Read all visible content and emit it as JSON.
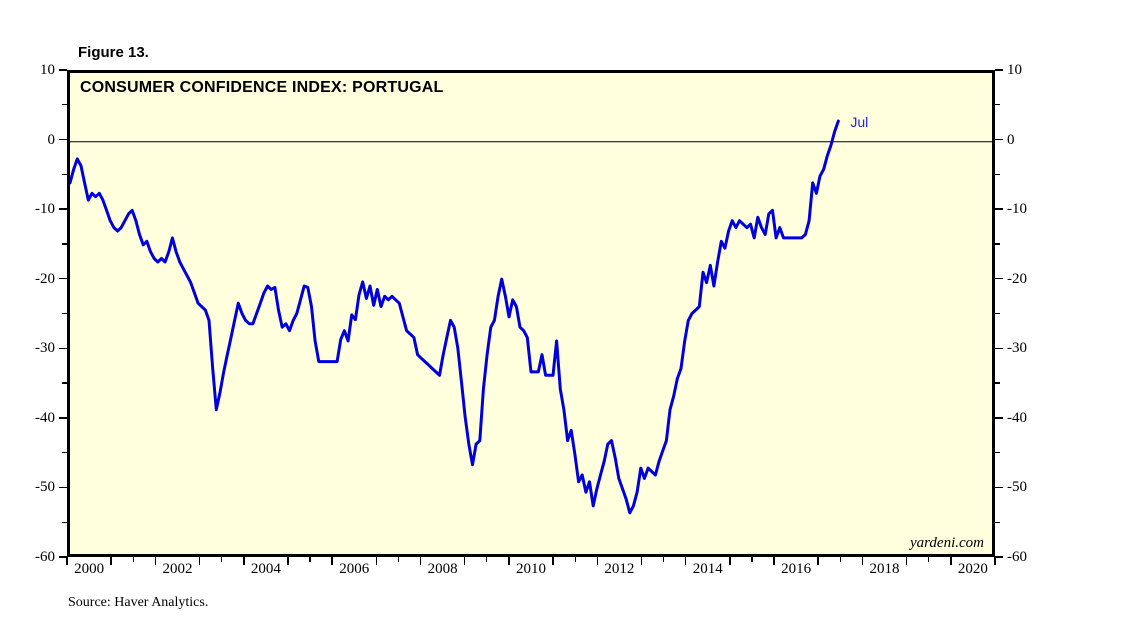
{
  "figure_label": "Figure 13.",
  "source_note": "Source: Haver Analytics.",
  "watermark": "yardeni.com",
  "annotation": {
    "text": "Jul"
  },
  "colors": {
    "plot_background": "#FFFFDE",
    "line": "#0000DC",
    "annotation": "#2222EE",
    "frame": "#000000"
  },
  "chart_data": {
    "type": "line",
    "title": "CONSUMER CONFIDENCE INDEX: PORTUGAL",
    "series_name": "Consumer Confidence Index: Portugal",
    "freq": "monthly",
    "start": "2000-01",
    "end": "2017-07",
    "x_range": [
      2000,
      2021
    ],
    "ylim": [
      -60,
      10
    ],
    "y_major_ticks": [
      10,
      0,
      -10,
      -20,
      -30,
      -40,
      -50,
      -60
    ],
    "y_minor_ticks": [
      5,
      -5,
      -15,
      -25,
      -35,
      -45,
      -55
    ],
    "x_labels": [
      2000,
      2002,
      2004,
      2006,
      2008,
      2010,
      2012,
      2014,
      2016,
      2018,
      2020
    ],
    "x_minor_tick_years": [
      2001.5,
      2003.5,
      2005.5,
      2007.5,
      2009.5,
      2011.5,
      2013.5,
      2015.5,
      2017.5,
      2019.5
    ],
    "zero_line": true,
    "grid": false,
    "legend": false,
    "last_point_label": "Jul",
    "values": [
      -6,
      -4,
      -2.5,
      -3.5,
      -6,
      -8.5,
      -7.5,
      -8,
      -7.5,
      -8.5,
      -10,
      -11.5,
      -12.5,
      -13,
      -12.5,
      -11.5,
      -10.5,
      -10,
      -11.5,
      -13.5,
      -15,
      -14.5,
      -16,
      -17,
      -17.5,
      -17,
      -17.5,
      -16,
      -14,
      -16,
      -17.5,
      -18.5,
      -19.5,
      -20.5,
      -22,
      -23.5,
      -24,
      -24.5,
      -26,
      -33,
      -39,
      -36.5,
      -33.5,
      -31,
      -28.5,
      -26,
      -23.5,
      -25,
      -26,
      -26.5,
      -26.5,
      -25,
      -23.5,
      -22,
      -21,
      -21.5,
      -21.2,
      -24.5,
      -27,
      -26.5,
      -27.5,
      -26,
      -25,
      -23,
      -21,
      -21.2,
      -24,
      -29,
      -32,
      -32,
      -32,
      -32,
      -32,
      -32,
      -28.8,
      -27.5,
      -29,
      -25.2,
      -25.9,
      -22.3,
      -20.4,
      -22.8,
      -21,
      -23.8,
      -21.5,
      -24,
      -22.5,
      -23,
      -22.5,
      -23,
      -23.5,
      -25.5,
      -27.5,
      -28,
      -28.5,
      -31,
      -31.5,
      -32,
      -32.5,
      -33,
      -33.5,
      -34,
      -31,
      -28.5,
      -26,
      -27,
      -30,
      -35,
      -40,
      -44,
      -47,
      -44,
      -43.5,
      -36,
      -31,
      -27,
      -26,
      -22.5,
      -20,
      -22.5,
      -25.5,
      -23,
      -24,
      -27,
      -27.5,
      -28.5,
      -33.5,
      -33.5,
      -33.5,
      -31,
      -34,
      -34,
      -34,
      -29,
      -36,
      -39,
      -43.5,
      -42,
      -45.5,
      -49.5,
      -48.5,
      -51,
      -49.5,
      -53,
      -50.5,
      -48.5,
      -46.5,
      -44,
      -43.5,
      -46,
      -49,
      -50.5,
      -52,
      -54,
      -53,
      -51,
      -47.5,
      -49,
      -47.5,
      -48,
      -48.5,
      -46.5,
      -45,
      -43.5,
      -39,
      -37,
      -34.5,
      -33,
      -29,
      -26,
      -25,
      -24.5,
      -24,
      -19,
      -20.5,
      -18,
      -21,
      -17.5,
      -14.5,
      -15.5,
      -13,
      -11.5,
      -12.5,
      -11.5,
      -12,
      -12.5,
      -12,
      -14,
      -11,
      -12.5,
      -13.5,
      -10.5,
      -10,
      -14,
      -12.5,
      -14,
      -14,
      -14,
      -14,
      -14,
      -14,
      -13.5,
      -11.5,
      -6,
      -7.5,
      -5,
      -4,
      -2,
      -0.5,
      1.5,
      3
    ]
  }
}
